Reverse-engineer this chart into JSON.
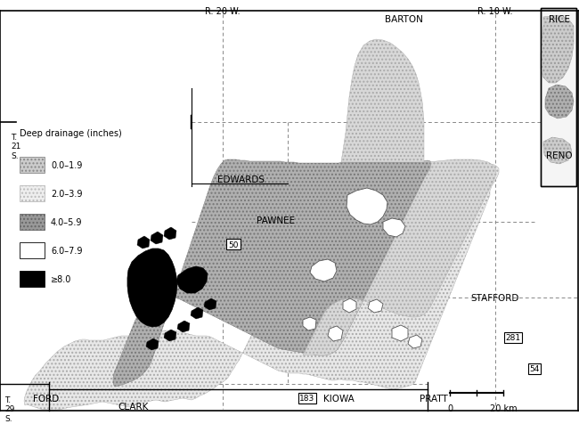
{
  "legend_title": "Deep drainage (inches)",
  "legend_items": [
    {
      "label": "0.0–1.9",
      "facecolor": "#cccccc",
      "hatch": "....",
      "edgecolor": "#888888"
    },
    {
      "label": "2.0–3.9",
      "facecolor": "#eeeeee",
      "hatch": "....",
      "edgecolor": "#bbbbbb"
    },
    {
      "label": "4.0–5.9",
      "facecolor": "#999999",
      "hatch": "....",
      "edgecolor": "#666666"
    },
    {
      "label": "6.0–7.9",
      "facecolor": "#ffffff",
      "hatch": "",
      "edgecolor": "#000000"
    },
    {
      "label": "≥8.0",
      "facecolor": "#000000",
      "hatch": "",
      "edgecolor": "#000000"
    }
  ],
  "bg_color": "#ffffff",
  "figsize": [
    6.5,
    4.77
  ],
  "dpi": 100
}
